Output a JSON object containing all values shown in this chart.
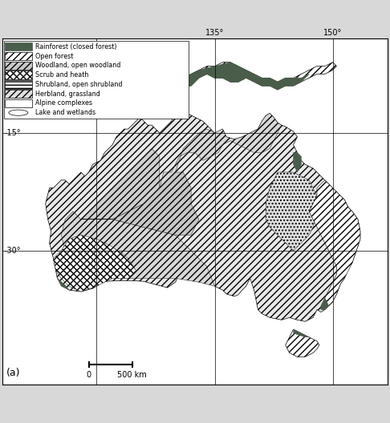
{
  "fig_width": 4.86,
  "fig_height": 5.28,
  "dpi": 100,
  "fig_bg": "#d8d8d8",
  "map_bg": "white",
  "map_extent": [
    108,
    157,
    -47,
    -3
  ],
  "lon_ticks": [
    120,
    135,
    150
  ],
  "lat_ticks": [
    -15,
    -30
  ],
  "lon_labels": [
    "135°",
    "150°"
  ],
  "lat_labels": [
    "-15°",
    "-30°"
  ],
  "panel_label": "(a)",
  "legend_items": [
    {
      "label": "Rainforest (closed forest)",
      "hatch": "",
      "fc": "#5a6b5a",
      "ec": "#5a6b5a"
    },
    {
      "label": "Open forest",
      "hatch": "////",
      "fc": "white",
      "ec": "black"
    },
    {
      "label": "Woodland, open woodland",
      "hatch": "////",
      "fc": "#c8c8c8",
      "ec": "black"
    },
    {
      "label": "Scrub and heath",
      "hatch": "xxxx",
      "fc": "white",
      "ec": "black"
    },
    {
      "label": "Shrubland, open shrubland",
      "hatch": "----",
      "fc": "white",
      "ec": "black"
    },
    {
      "label": "Herbland, grassland",
      "hatch": "////",
      "fc": "#e8e8e8",
      "ec": "black"
    },
    {
      "label": "Alpine complexes",
      "hatch": "",
      "fc": "white",
      "ec": "black"
    },
    {
      "label": "Lake and wetlands",
      "hatch": "ellipse",
      "fc": "white",
      "ec": "black"
    }
  ],
  "rainforest_color": "#4a5c4a",
  "scale_bar_lon": [
    119,
    124.5
  ],
  "scale_bar_lat": -45.0,
  "scale_label0": "0",
  "scale_label1": "500 km"
}
